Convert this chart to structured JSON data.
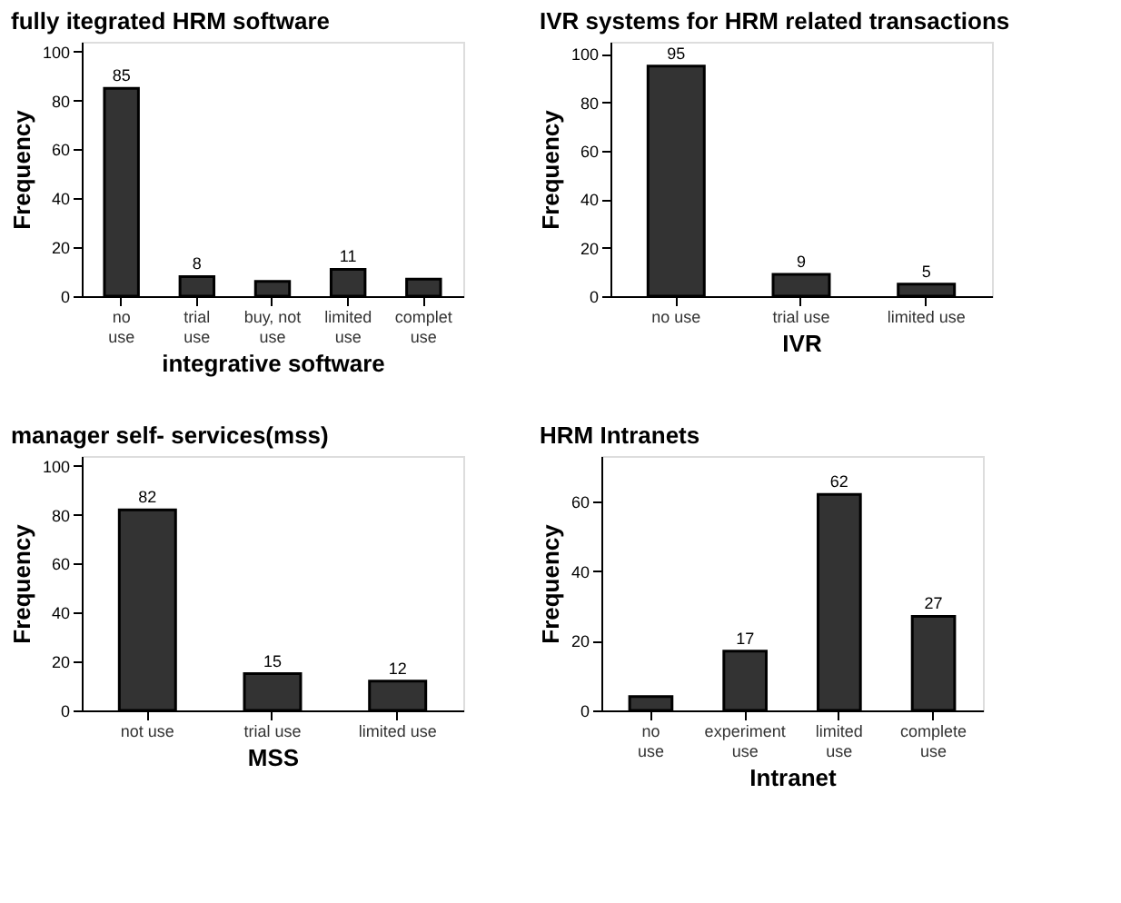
{
  "chart_data": [
    {
      "type": "bar",
      "title": "fully itegrated HRM software",
      "xlabel": "integrative software",
      "ylabel": "Frequency",
      "categories": [
        "no use",
        "trial use",
        "buy, not use",
        "limited use",
        "complet use"
      ],
      "values": [
        85,
        8,
        6,
        11,
        7
      ],
      "value_labels": [
        "85",
        "8",
        null,
        "11",
        null
      ],
      "color": "#333333",
      "ylim": [
        0,
        104
      ],
      "yticks": [
        0,
        20,
        40,
        60,
        80,
        100
      ],
      "grid": false
    },
    {
      "type": "bar",
      "title": "IVR systems for HRM related transactions",
      "xlabel": "IVR",
      "ylabel": "Frequency",
      "categories": [
        "no use",
        "trial use",
        "limited use"
      ],
      "values": [
        95,
        9,
        5
      ],
      "data_labels": true,
      "color": "#333333",
      "ylim": [
        0,
        105
      ],
      "yticks": [
        0,
        20,
        40,
        60,
        80,
        100
      ],
      "grid": false
    },
    {
      "type": "bar",
      "title": "manager self- services(mss)",
      "xlabel": "MSS",
      "ylabel": "Frequency",
      "categories": [
        "not use",
        "trial use",
        "limited use"
      ],
      "values": [
        82,
        15,
        12
      ],
      "data_labels": true,
      "color": "#333333",
      "ylim": [
        0,
        104
      ],
      "yticks": [
        0,
        20,
        40,
        60,
        80,
        100
      ],
      "grid": false
    },
    {
      "type": "bar",
      "title": "HRM Intranets",
      "xlabel": "Intranet",
      "ylabel": "Frequency",
      "categories": [
        "no use",
        "experiment use",
        "limited use",
        "complete use"
      ],
      "values": [
        4,
        17,
        62,
        27
      ],
      "value_labels": [
        null,
        "17",
        "62",
        "27"
      ],
      "color": "#333333",
      "ylim": [
        0,
        73
      ],
      "yticks": [
        0,
        20,
        40,
        60
      ],
      "grid": false
    }
  ]
}
